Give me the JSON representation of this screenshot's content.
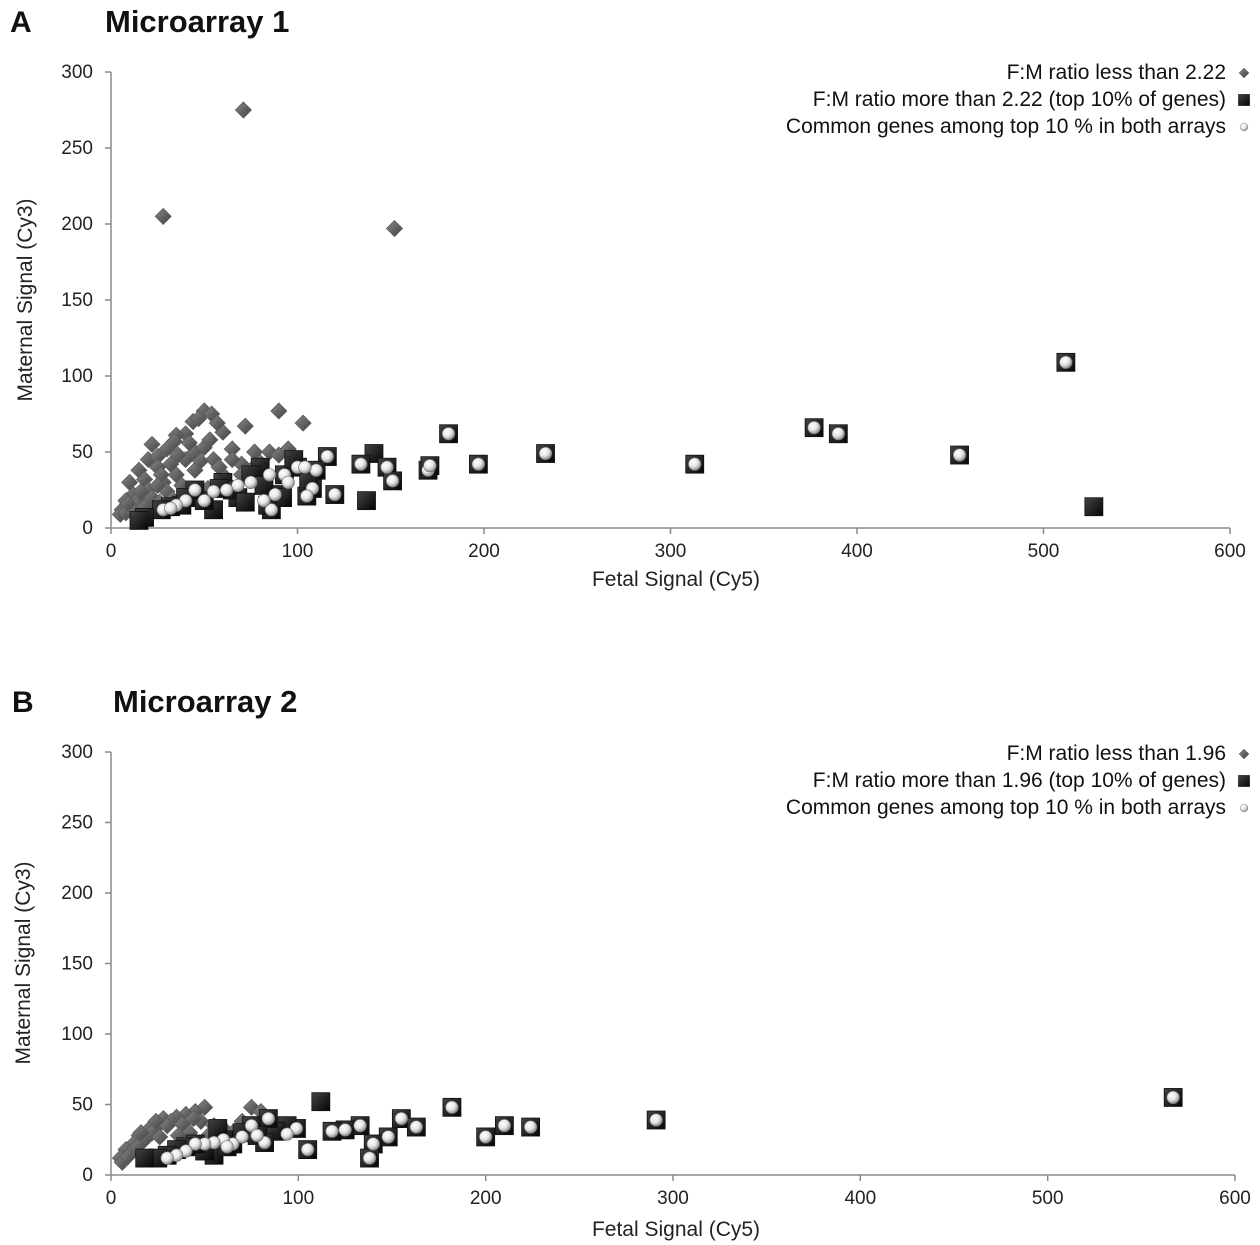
{
  "colors": {
    "diamond": "#5c5c5c",
    "square": "#111111",
    "sphere": "#f2f2f2",
    "axis": "#8a8a8a"
  },
  "chart_data": [
    {
      "type": "scatter",
      "panel_letter": "A",
      "title": "Microarray 1",
      "xlabel": "Fetal Signal (Cy5)",
      "ylabel": "Maternal Signal (Cy3)",
      "xlim": [
        0,
        600
      ],
      "ylim": [
        0,
        300
      ],
      "xticks": [
        "0",
        "100",
        "200",
        "300",
        "400",
        "500",
        "600"
      ],
      "yticks": [
        "0",
        "50",
        "100",
        "150",
        "200",
        "250",
        "300"
      ],
      "legend_position": "top-right",
      "series": [
        {
          "name": "F:M ratio less than 2.22",
          "marker": "diamond",
          "points": [
            [
              28,
              205
            ],
            [
              71,
              275
            ],
            [
              152,
              197
            ],
            [
              50,
              77
            ],
            [
              54,
              75
            ],
            [
              44,
              70
            ],
            [
              47,
              72
            ],
            [
              72,
              67
            ],
            [
              90,
              77
            ],
            [
              103,
              69
            ],
            [
              60,
              63
            ],
            [
              57,
              69
            ],
            [
              40,
              62
            ],
            [
              35,
              61
            ],
            [
              34,
              57
            ],
            [
              22,
              55
            ],
            [
              30,
              52
            ],
            [
              45,
              50
            ],
            [
              50,
              53
            ],
            [
              65,
              52
            ],
            [
              77,
              50
            ],
            [
              85,
              50
            ],
            [
              90,
              48
            ],
            [
              20,
              45
            ],
            [
              25,
              47
            ],
            [
              40,
              45
            ],
            [
              55,
              45
            ],
            [
              70,
              42
            ],
            [
              80,
              43
            ],
            [
              15,
              38
            ],
            [
              25,
              40
            ],
            [
              35,
              35
            ],
            [
              45,
              38
            ],
            [
              60,
              35
            ],
            [
              70,
              35
            ],
            [
              10,
              30
            ],
            [
              18,
              32
            ],
            [
              28,
              30
            ],
            [
              38,
              28
            ],
            [
              12,
              22
            ],
            [
              20,
              25
            ],
            [
              30,
              24
            ],
            [
              8,
              18
            ],
            [
              15,
              19
            ],
            [
              22,
              20
            ],
            [
              6,
              12
            ],
            [
              10,
              14
            ],
            [
              14,
              15
            ],
            [
              5,
              9
            ],
            [
              8,
              10
            ],
            [
              12,
              11
            ],
            [
              18,
              14
            ],
            [
              26,
              17
            ],
            [
              33,
              19
            ],
            [
              42,
              22
            ],
            [
              52,
              26
            ],
            [
              62,
              30
            ],
            [
              58,
              40
            ],
            [
              48,
              44
            ],
            [
              36,
              48
            ],
            [
              32,
              42
            ],
            [
              27,
              35
            ],
            [
              65,
              45
            ],
            [
              75,
              38
            ],
            [
              95,
              52
            ],
            [
              53,
              58
            ],
            [
              42,
              56
            ],
            [
              25,
              28
            ],
            [
              16,
              24
            ],
            [
              9,
              16
            ]
          ]
        },
        {
          "name": "F:M ratio more than 2.22 (top 10% of genes)",
          "marker": "square",
          "points": [
            [
              512,
              109
            ],
            [
              377,
              66
            ],
            [
              390,
              62
            ],
            [
              455,
              48
            ],
            [
              527,
              14
            ],
            [
              181,
              62
            ],
            [
              233,
              49
            ],
            [
              197,
              42
            ],
            [
              313,
              42
            ],
            [
              141,
              49
            ],
            [
              116,
              47
            ],
            [
              134,
              42
            ],
            [
              148,
              40
            ],
            [
              151,
              31
            ],
            [
              170,
              38
            ],
            [
              171,
              41
            ],
            [
              137,
              18
            ],
            [
              120,
              22
            ],
            [
              108,
              26
            ],
            [
              105,
              21
            ],
            [
              100,
              40
            ],
            [
              93,
              35
            ],
            [
              86,
              12
            ],
            [
              88,
              22
            ],
            [
              80,
              40
            ],
            [
              75,
              35
            ],
            [
              68,
              20
            ],
            [
              60,
              30
            ],
            [
              55,
              12
            ],
            [
              50,
              18
            ],
            [
              45,
              25
            ],
            [
              38,
              15
            ],
            [
              32,
              14
            ],
            [
              27,
              12
            ],
            [
              18,
              7
            ],
            [
              15,
              5
            ],
            [
              98,
              45
            ],
            [
              110,
              38
            ],
            [
              65,
              25
            ],
            [
              82,
              28
            ],
            [
              72,
              17
            ],
            [
              40,
              20
            ],
            [
              58,
              26
            ],
            [
              106,
              30
            ],
            [
              92,
              20
            ],
            [
              84,
              15
            ]
          ]
        },
        {
          "name": "Common genes among top 10 % in both arrays",
          "marker": "sphere",
          "points": [
            [
              512,
              109
            ],
            [
              377,
              66
            ],
            [
              390,
              62
            ],
            [
              455,
              48
            ],
            [
              181,
              62
            ],
            [
              233,
              49
            ],
            [
              197,
              42
            ],
            [
              313,
              42
            ],
            [
              116,
              47
            ],
            [
              134,
              42
            ],
            [
              148,
              40
            ],
            [
              151,
              31
            ],
            [
              170,
              38
            ],
            [
              171,
              41
            ],
            [
              120,
              22
            ],
            [
              108,
              26
            ],
            [
              105,
              21
            ],
            [
              86,
              12
            ],
            [
              88,
              22
            ],
            [
              100,
              40
            ],
            [
              93,
              35
            ],
            [
              75,
              30
            ],
            [
              68,
              28
            ],
            [
              62,
              25
            ],
            [
              55,
              24
            ],
            [
              50,
              18
            ],
            [
              45,
              25
            ],
            [
              40,
              18
            ],
            [
              35,
              15
            ],
            [
              28,
              12
            ],
            [
              32,
              13
            ],
            [
              82,
              18
            ],
            [
              95,
              30
            ],
            [
              110,
              38
            ],
            [
              85,
              35
            ],
            [
              104,
              40
            ]
          ]
        }
      ]
    },
    {
      "type": "scatter",
      "panel_letter": "B",
      "title": "Microarray 2",
      "xlabel": "Fetal Signal (Cy5)",
      "ylabel": "Maternal Signal (Cy3)",
      "xlim": [
        0,
        600
      ],
      "ylim": [
        0,
        300
      ],
      "xticks": [
        "0",
        "100",
        "200",
        "300",
        "400",
        "500",
        "600"
      ],
      "yticks": [
        "0",
        "50",
        "100",
        "150",
        "200",
        "250",
        "300"
      ],
      "legend_position": "top-right",
      "series": [
        {
          "name": "F:M ratio less than 1.96",
          "marker": "diamond",
          "points": [
            [
              50,
              48
            ],
            [
              75,
              48
            ],
            [
              45,
              45
            ],
            [
              40,
              43
            ],
            [
              35,
              41
            ],
            [
              28,
              40
            ],
            [
              32,
              38
            ],
            [
              25,
              35
            ],
            [
              20,
              32
            ],
            [
              15,
              28
            ],
            [
              12,
              22
            ],
            [
              8,
              18
            ],
            [
              5,
              12
            ],
            [
              6,
              9
            ],
            [
              10,
              15
            ],
            [
              18,
              25
            ],
            [
              22,
              30
            ],
            [
              30,
              35
            ],
            [
              38,
              36
            ],
            [
              42,
              30
            ],
            [
              48,
              38
            ],
            [
              55,
              35
            ],
            [
              60,
              33
            ],
            [
              65,
              30
            ],
            [
              70,
              38
            ],
            [
              80,
              45
            ],
            [
              14,
              20
            ],
            [
              9,
              13
            ],
            [
              26,
              27
            ],
            [
              36,
              28
            ],
            [
              52,
              28
            ],
            [
              44,
              40
            ],
            [
              24,
              38
            ],
            [
              16,
              30
            ]
          ]
        },
        {
          "name": "F:M ratio more than 1.96 (top 10% of genes)",
          "marker": "square",
          "points": [
            [
              567,
              55
            ],
            [
              291,
              39
            ],
            [
              182,
              48
            ],
            [
              200,
              27
            ],
            [
              210,
              35
            ],
            [
              224,
              34
            ],
            [
              155,
              40
            ],
            [
              163,
              34
            ],
            [
              148,
              27
            ],
            [
              140,
              22
            ],
            [
              138,
              12
            ],
            [
              133,
              35
            ],
            [
              125,
              32
            ],
            [
              118,
              31
            ],
            [
              112,
              52
            ],
            [
              105,
              18
            ],
            [
              99,
              33
            ],
            [
              94,
              35
            ],
            [
              88,
              31
            ],
            [
              82,
              23
            ],
            [
              84,
              40
            ],
            [
              75,
              35
            ],
            [
              70,
              30
            ],
            [
              65,
              22
            ],
            [
              60,
              25
            ],
            [
              55,
              14
            ],
            [
              50,
              17
            ],
            [
              45,
              22
            ],
            [
              40,
              20
            ],
            [
              35,
              18
            ],
            [
              30,
              14
            ],
            [
              25,
              12
            ],
            [
              18,
              12
            ],
            [
              57,
              33
            ],
            [
              78,
              28
            ],
            [
              62,
              20
            ]
          ]
        },
        {
          "name": "Common genes among top 10 % in both arrays",
          "marker": "sphere",
          "points": [
            [
              567,
              55
            ],
            [
              291,
              39
            ],
            [
              182,
              48
            ],
            [
              200,
              27
            ],
            [
              210,
              35
            ],
            [
              224,
              34
            ],
            [
              155,
              40
            ],
            [
              163,
              34
            ],
            [
              148,
              27
            ],
            [
              140,
              22
            ],
            [
              138,
              12
            ],
            [
              133,
              35
            ],
            [
              125,
              32
            ],
            [
              118,
              31
            ],
            [
              105,
              18
            ],
            [
              99,
              33
            ],
            [
              94,
              29
            ],
            [
              82,
              23
            ],
            [
              84,
              40
            ],
            [
              75,
              35
            ],
            [
              70,
              27
            ],
            [
              65,
              22
            ],
            [
              60,
              25
            ],
            [
              55,
              23
            ],
            [
              50,
              22
            ],
            [
              45,
              22
            ],
            [
              40,
              17
            ],
            [
              35,
              14
            ],
            [
              30,
              12
            ],
            [
              62,
              20
            ],
            [
              78,
              28
            ]
          ]
        }
      ]
    }
  ]
}
